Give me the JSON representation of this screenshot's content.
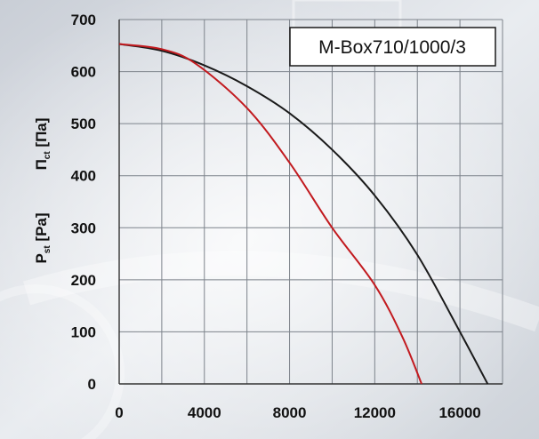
{
  "chart_data": {
    "type": "line",
    "title": "M-Box710/1000/3",
    "ylabel_primary": "P",
    "ylabel_primary_sub": "st",
    "ylabel_primary_unit": "[Pa]",
    "ylabel_secondary": "П",
    "ylabel_secondary_sub": "ct",
    "ylabel_secondary_unit": "[Па]",
    "xlabel": "",
    "xlim": [
      0,
      18000
    ],
    "ylim": [
      0,
      700
    ],
    "x_ticks": [
      "0",
      "4000",
      "8000",
      "12000",
      "16000"
    ],
    "y_ticks": [
      "0",
      "100",
      "200",
      "300",
      "400",
      "500",
      "600",
      "700"
    ],
    "grid": true,
    "series": [
      {
        "color": "#1a1a1a",
        "x": [
          0,
          2000,
          4000,
          6000,
          8000,
          10000,
          12000,
          14000,
          16000,
          17300
        ],
        "y": [
          653,
          640,
          612,
          572,
          520,
          450,
          362,
          248,
          100,
          0
        ]
      },
      {
        "color": "#c21a1f",
        "x": [
          0,
          2000,
          3600,
          6000,
          8000,
          10000,
          12000,
          13300,
          14200
        ],
        "y": [
          653,
          643,
          615,
          530,
          425,
          300,
          190,
          90,
          0
        ]
      }
    ]
  }
}
